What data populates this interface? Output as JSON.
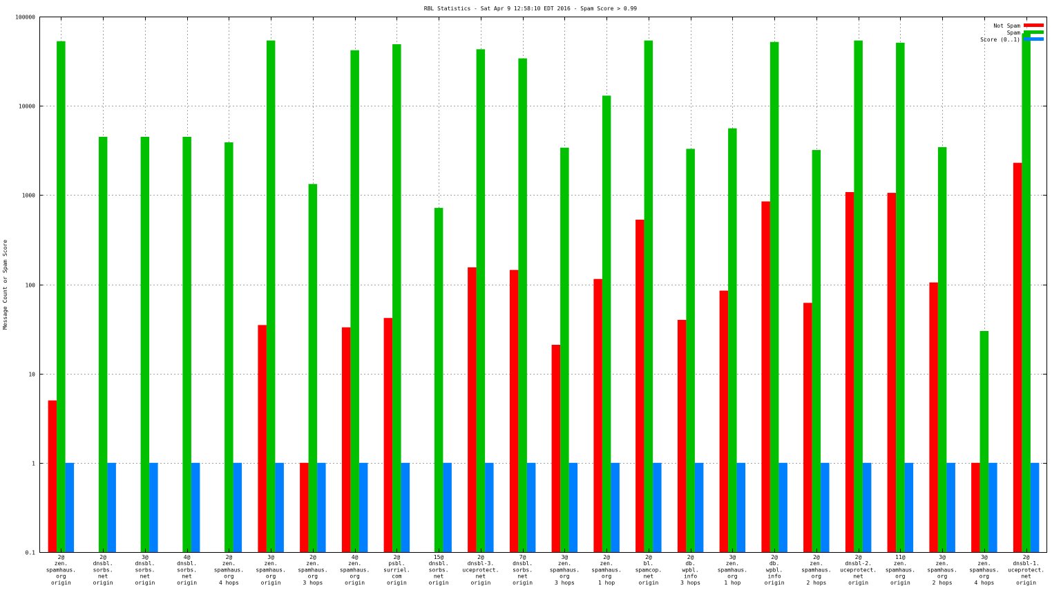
{
  "chart_data": {
    "type": "bar",
    "title": "RBL Statistics - Sat Apr  9 12:58:10 EDT 2016 - Spam Score > 0.99",
    "ylabel": "Message Count or Spam Score",
    "xlabel": "",
    "yscale": "log",
    "ylim": [
      0.1,
      100000
    ],
    "yticks": [
      "0.1",
      "1",
      "10",
      "100",
      "1000",
      "10000",
      "100000"
    ],
    "grid": true,
    "legend_position": "top-right",
    "categories": [
      [
        "2@",
        "zen.",
        "spamhaus.",
        "org",
        "origin"
      ],
      [
        "2@",
        "dnsbl.",
        "sorbs.",
        "net",
        "origin"
      ],
      [
        "3@",
        "dnsbl.",
        "sorbs.",
        "net",
        "origin"
      ],
      [
        "4@",
        "dnsbl.",
        "sorbs.",
        "net",
        "origin"
      ],
      [
        "2@",
        "zen.",
        "spamhaus.",
        "org",
        "4 hops"
      ],
      [
        "3@",
        "zen.",
        "spamhaus.",
        "org",
        "origin"
      ],
      [
        "2@",
        "zen.",
        "spamhaus.",
        "org",
        "3 hops"
      ],
      [
        "4@",
        "zen.",
        "spamhaus.",
        "org",
        "origin"
      ],
      [
        "2@",
        "psbl.",
        "surriel.",
        "com",
        "origin"
      ],
      [
        "15@",
        "dnsbl.",
        "sorbs.",
        "net",
        "origin"
      ],
      [
        "2@",
        "dnsbl-3.",
        "uceprotect.",
        "net",
        "origin"
      ],
      [
        "7@",
        "dnsbl.",
        "sorbs.",
        "net",
        "origin"
      ],
      [
        "3@",
        "zen.",
        "spamhaus.",
        "org",
        "3 hops"
      ],
      [
        "2@",
        "zen.",
        "spamhaus.",
        "org",
        "1 hop"
      ],
      [
        "2@",
        "bl.",
        "spamcop.",
        "net",
        "origin"
      ],
      [
        "2@",
        "db.",
        "wpbl.",
        "info",
        "3 hops"
      ],
      [
        "3@",
        "zen.",
        "spamhaus.",
        "org",
        "1 hop"
      ],
      [
        "2@",
        "db.",
        "wpbl.",
        "info",
        "origin"
      ],
      [
        "2@",
        "zen.",
        "spamhaus.",
        "org",
        "2 hops"
      ],
      [
        "2@",
        "dnsbl-2.",
        "uceprotect.",
        "net",
        "origin"
      ],
      [
        "11@",
        "zen.",
        "spamhaus.",
        "org",
        "origin"
      ],
      [
        "3@",
        "zen.",
        "spamhaus.",
        "org",
        "2 hops"
      ],
      [
        "3@",
        "zen.",
        "spamhaus.",
        "org",
        "4 hops"
      ],
      [
        "2@",
        "dnsbl-1.",
        "uceprotect.",
        "net",
        "origin"
      ]
    ],
    "series": [
      {
        "name": "Not Spam",
        "color": "#ff0000",
        "values": [
          5,
          null,
          null,
          null,
          null,
          35,
          1,
          33,
          42,
          null,
          155,
          145,
          21,
          115,
          530,
          40,
          85,
          850,
          62,
          1080,
          1060,
          105,
          1,
          2300
        ]
      },
      {
        "name": "Spam",
        "color": "#00c000",
        "values": [
          53000,
          4500,
          4500,
          4500,
          3900,
          54000,
          1330,
          42000,
          49000,
          720,
          43000,
          34000,
          3400,
          13000,
          54000,
          3300,
          5600,
          52000,
          3200,
          54000,
          51000,
          3450,
          30,
          65000
        ]
      },
      {
        "name": "Score (0..1)",
        "color": "#0080ff",
        "values": [
          1,
          1,
          1,
          1,
          1,
          1,
          1,
          1,
          1,
          1,
          1,
          1,
          1,
          1,
          1,
          1,
          1,
          1,
          1,
          1,
          1,
          1,
          1,
          1
        ]
      }
    ]
  }
}
